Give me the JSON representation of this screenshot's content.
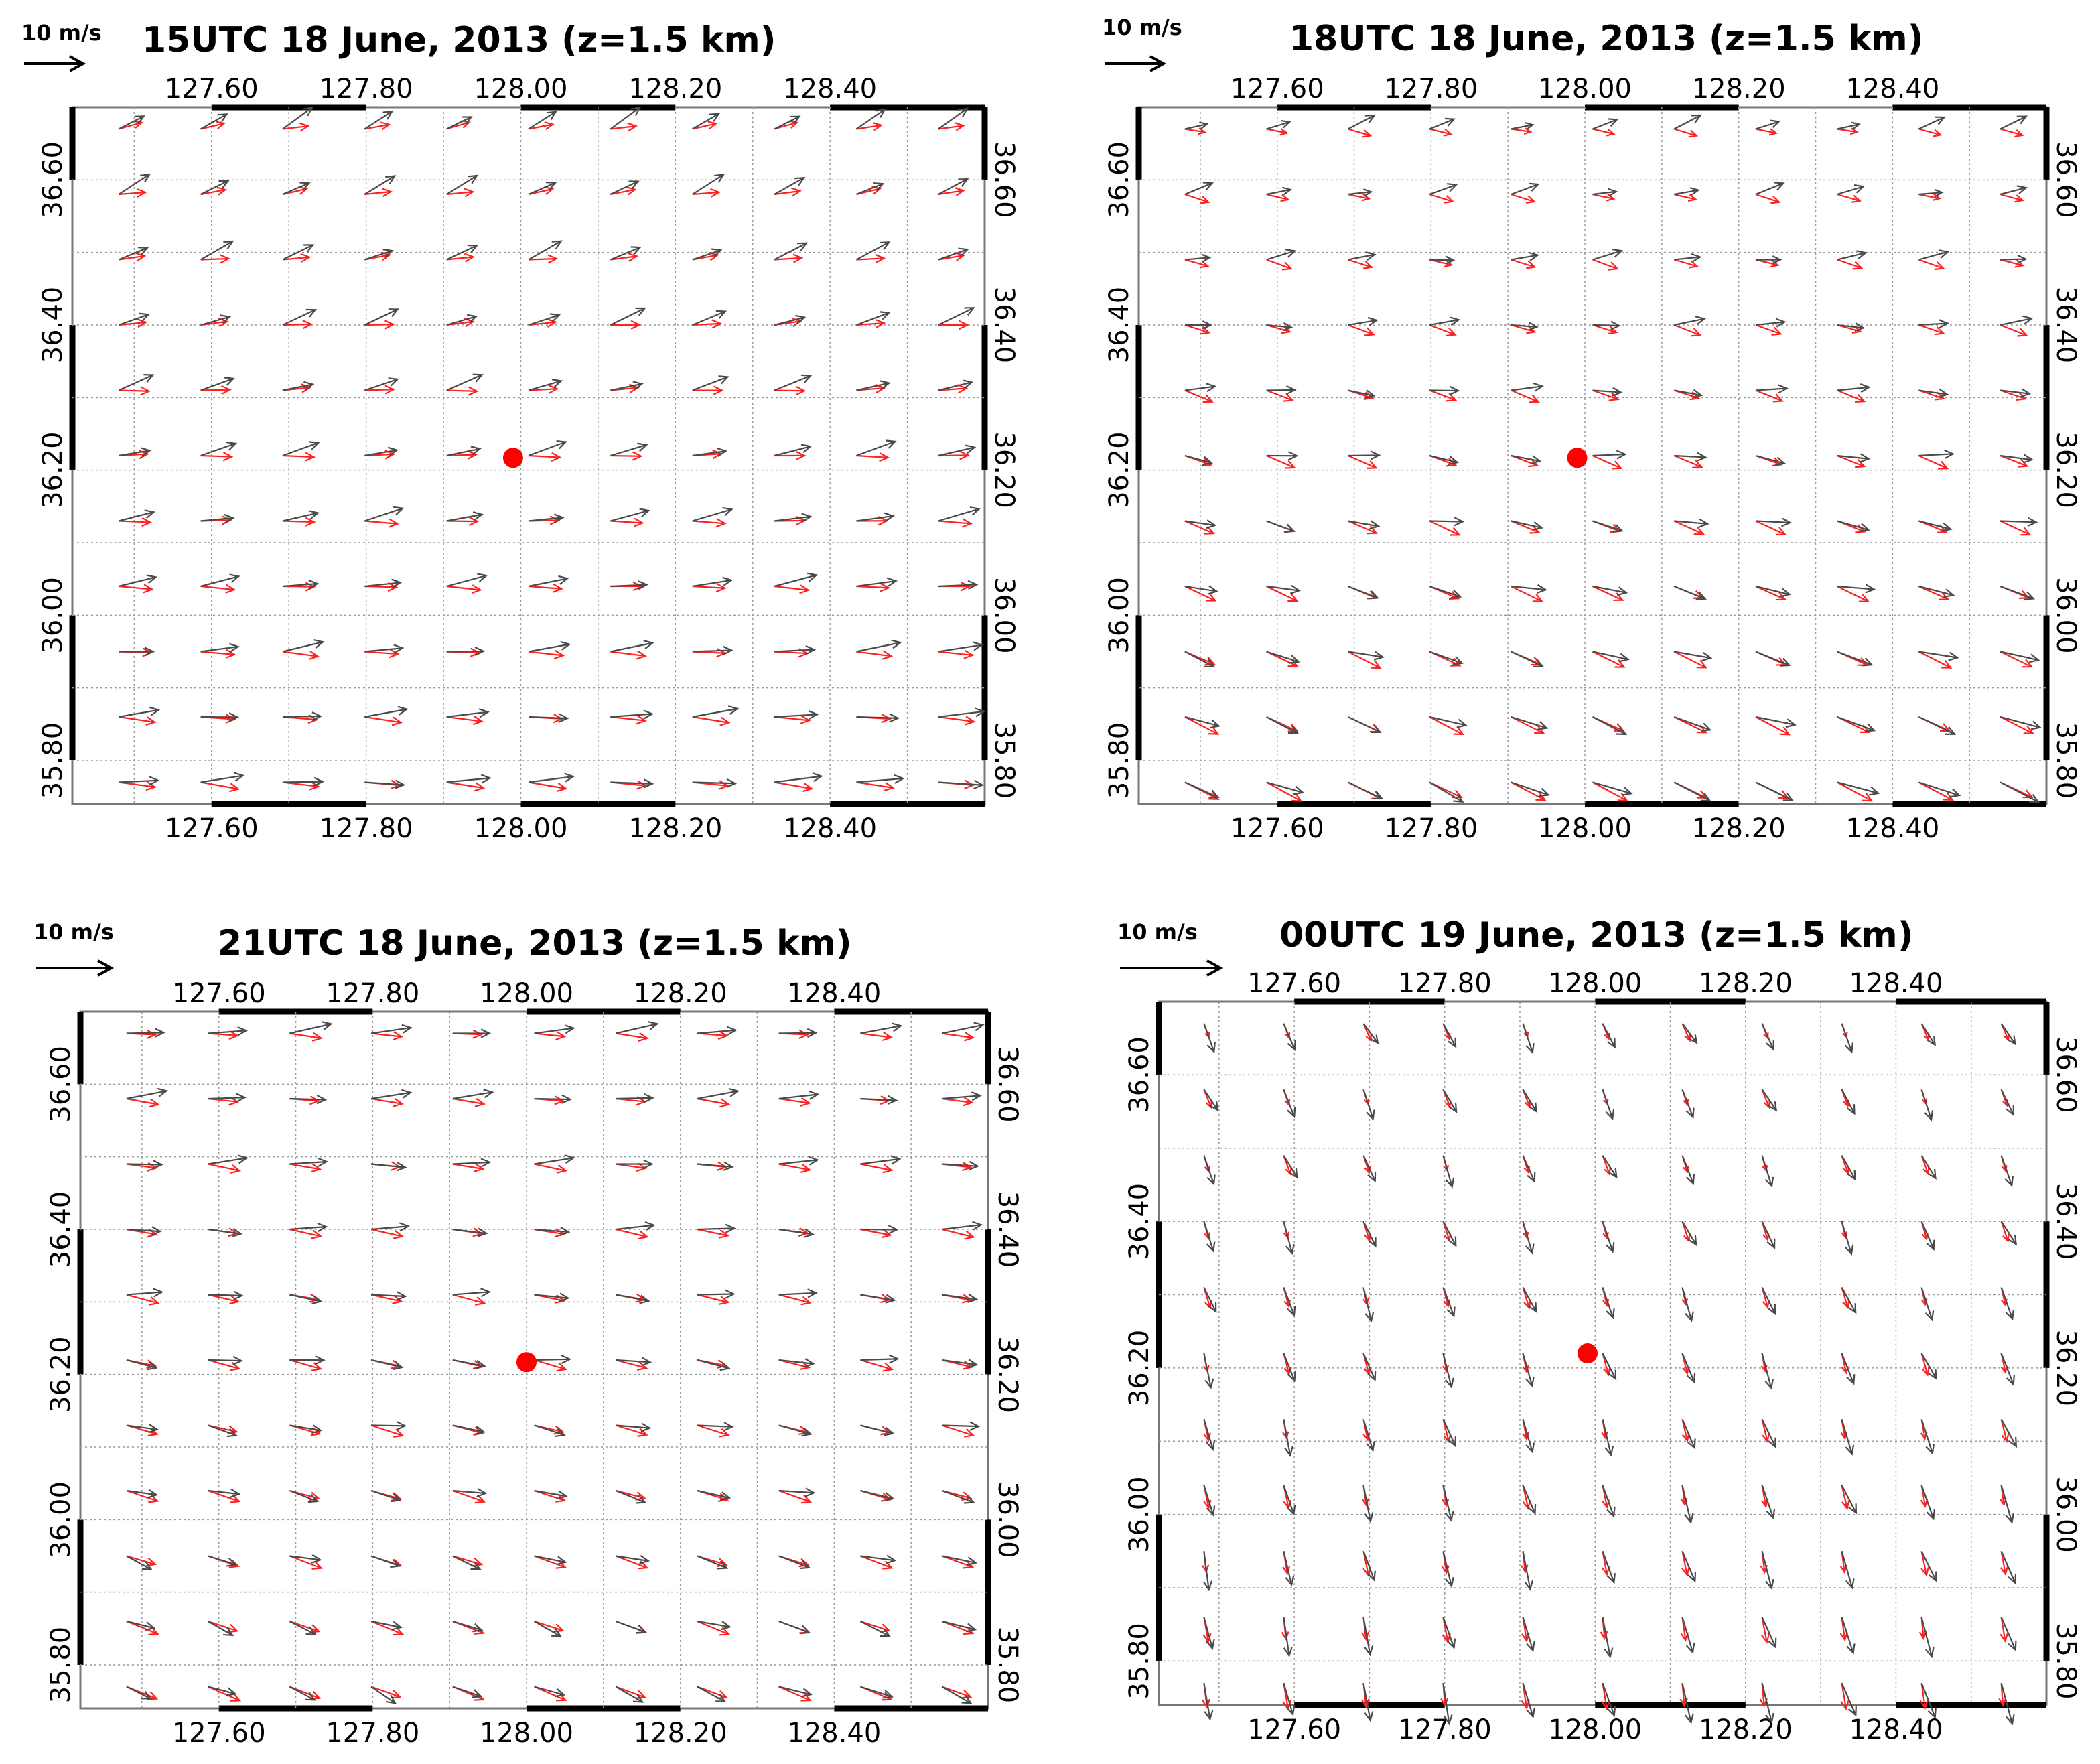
{
  "colors": {
    "observed": "#4a4a4a",
    "model": "#ff2020",
    "marker": "#ff0000",
    "grid": "#9a9a9a"
  },
  "chart_data": [
    {
      "type": "vector-field",
      "title": "15UTC 18 June, 2013 (z=1.5 km)",
      "reference_vector_label": "10 m/s",
      "x_ticks": [
        "127.60",
        "127.80",
        "128.00",
        "128.20",
        "128.40"
      ],
      "y_ticks": [
        "35.80",
        "36.00",
        "36.20",
        "36.40",
        "36.60"
      ],
      "xlim": [
        127.42,
        128.6
      ],
      "ylim": [
        35.74,
        36.7
      ],
      "marker": {
        "lon": 127.99,
        "lat": 36.217
      },
      "pattern": {
        "gray_u": [
          6.5,
          4.5
        ],
        "gray_v": [
          0.3,
          2.8
        ],
        "red_u": [
          6.0,
          4.0
        ],
        "red_v": [
          -0.8,
          0.8
        ]
      }
    },
    {
      "type": "vector-field",
      "title": "18UTC 18 June, 2013 (z=1.5 km)",
      "reference_vector_label": "10 m/s",
      "x_ticks": [
        "127.60",
        "127.80",
        "128.00",
        "128.20",
        "128.40"
      ],
      "y_ticks": [
        "35.80",
        "36.00",
        "36.20",
        "36.40",
        "36.60"
      ],
      "xlim": [
        127.42,
        128.6
      ],
      "ylim": [
        35.74,
        36.7
      ],
      "marker": {
        "lon": 127.99,
        "lat": 36.217
      },
      "pattern": {
        "gray_u": [
          5.5,
          4.0
        ],
        "gray_v": [
          -2.5,
          1.5
        ],
        "red_u": [
          5.5,
          3.5
        ],
        "red_v": [
          -2.8,
          -0.8
        ]
      }
    },
    {
      "type": "vector-field",
      "title": "21UTC 18 June, 2013 (z=1.5 km)",
      "reference_vector_label": "10 m/s",
      "x_ticks": [
        "127.60",
        "127.80",
        "128.00",
        "128.20",
        "128.40"
      ],
      "y_ticks": [
        "35.80",
        "36.00",
        "36.20",
        "36.40",
        "36.60"
      ],
      "xlim": [
        127.42,
        128.6
      ],
      "ylim": [
        35.74,
        36.7
      ],
      "marker": {
        "lon": 128.0,
        "lat": 36.217
      },
      "pattern": {
        "gray_u": [
          4.0,
          6.5
        ],
        "gray_v": [
          -2.0,
          0.8
        ],
        "red_u": [
          5.0,
          5.0
        ],
        "red_v": [
          -2.0,
          -0.5
        ]
      }
    },
    {
      "type": "vector-field",
      "title": "00UTC 19 June, 2013 (z=1.5 km)",
      "reference_vector_label": "10 m/s",
      "x_ticks": [
        "127.60",
        "127.80",
        "128.00",
        "128.20",
        "128.40"
      ],
      "y_ticks": [
        "35.80",
        "36.00",
        "36.20",
        "36.40",
        "36.60"
      ],
      "xlim": [
        127.42,
        128.6
      ],
      "ylim": [
        35.74,
        36.7
      ],
      "marker": {
        "lon": 127.99,
        "lat": 36.22
      },
      "pattern": {
        "gray_u": [
          1.0,
          2.0
        ],
        "gray_v": [
          -6.0,
          -4.0
        ],
        "red_u": [
          0.5,
          1.0
        ],
        "red_v": [
          -4.0,
          -2.5
        ]
      }
    }
  ]
}
